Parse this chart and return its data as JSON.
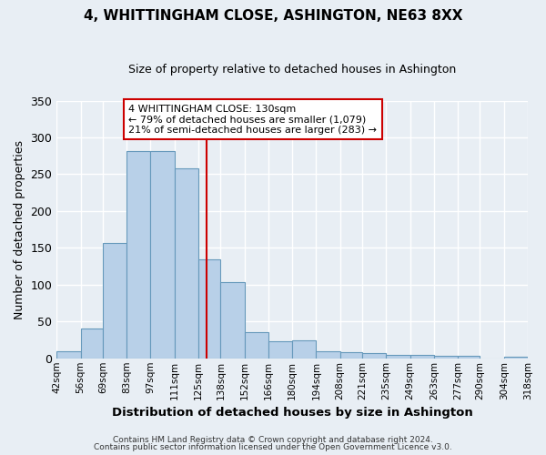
{
  "title": "4, WHITTINGHAM CLOSE, ASHINGTON, NE63 8XX",
  "subtitle": "Size of property relative to detached houses in Ashington",
  "xlabel": "Distribution of detached houses by size in Ashington",
  "ylabel": "Number of detached properties",
  "bar_color": "#b8d0e8",
  "bar_edge_color": "#6699bb",
  "background_color": "#e8eef4",
  "plot_bg_color": "#e8eef4",
  "grid_color": "#ffffff",
  "bins": [
    42,
    56,
    69,
    83,
    97,
    111,
    125,
    138,
    152,
    166,
    180,
    194,
    208,
    221,
    235,
    249,
    263,
    277,
    290,
    304,
    318
  ],
  "bin_labels": [
    "42sqm",
    "56sqm",
    "69sqm",
    "83sqm",
    "97sqm",
    "111sqm",
    "125sqm",
    "138sqm",
    "152sqm",
    "166sqm",
    "180sqm",
    "194sqm",
    "208sqm",
    "221sqm",
    "235sqm",
    "249sqm",
    "263sqm",
    "277sqm",
    "290sqm",
    "304sqm",
    "318sqm"
  ],
  "heights": [
    10,
    41,
    157,
    281,
    281,
    258,
    134,
    103,
    36,
    23,
    24,
    9,
    8,
    7,
    5,
    5,
    4,
    3,
    0,
    2
  ],
  "vline_x": 130,
  "vline_color": "#cc0000",
  "annotation_title": "4 WHITTINGHAM CLOSE: 130sqm",
  "annotation_line1": "← 79% of detached houses are smaller (1,079)",
  "annotation_line2": "21% of semi-detached houses are larger (283) →",
  "annotation_box_color": "#ffffff",
  "annotation_box_edge": "#cc0000",
  "ylim": [
    0,
    350
  ],
  "yticks": [
    0,
    50,
    100,
    150,
    200,
    250,
    300,
    350
  ],
  "footer1": "Contains HM Land Registry data © Crown copyright and database right 2024.",
  "footer2": "Contains public sector information licensed under the Open Government Licence v3.0."
}
